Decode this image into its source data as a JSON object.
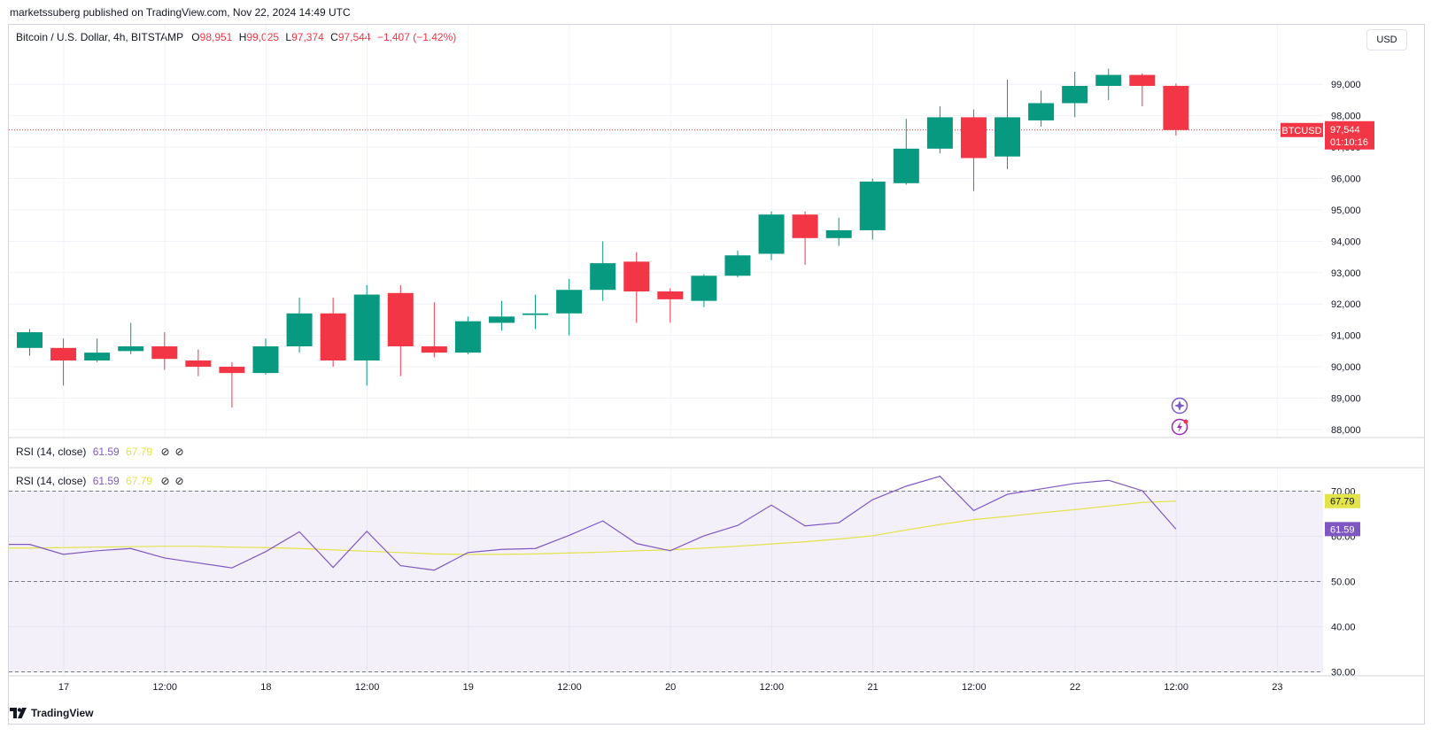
{
  "header": {
    "attribution": "marketssuberg published on TradingView.com, Nov 22, 2024 14:49 UTC"
  },
  "legend": {
    "symbol": "Bitcoin / U.S. Dollar, 4h, BITSTAMP",
    "o_label": "O",
    "o_value": "98,951",
    "h_label": "H",
    "h_value": "99,025",
    "l_label": "L",
    "l_value": "97,374",
    "c_label": "C",
    "c_value": "97,544",
    "change": "−1,407 (−1.42%)"
  },
  "currency_button": "USD",
  "price_tag": {
    "ticker": "BTCUSD",
    "price": "97,544",
    "countdown": "01:10:16"
  },
  "rsi_legend": {
    "label": "RSI (14, close)",
    "rsi_value": "61.59",
    "ma_value": "67.79"
  },
  "rsi_tags": {
    "ma": "67.79",
    "rsi": "61.59"
  },
  "branding": "TradingView",
  "colors": {
    "up": "#089981",
    "down": "#f23645",
    "rsi_line": "#7e57c2",
    "rsi_ma": "#e3e34a",
    "rsi_band": "#7e57c2"
  },
  "chart_data": [
    {
      "type": "candlestick",
      "title": "Bitcoin / U.S. Dollar, 4h, BITSTAMP",
      "y_ticks": [
        88000,
        89000,
        90000,
        91000,
        92000,
        93000,
        94000,
        95000,
        96000,
        97000,
        98000,
        99000
      ],
      "y_tick_labels": [
        "88,000",
        "89,000",
        "90,000",
        "91,000",
        "92,000",
        "93,000",
        "94,000",
        "95,000",
        "96,000",
        "97,000",
        "98,000",
        "99,000"
      ],
      "ylim": [
        87800,
        100050
      ],
      "x_tick_labels": [
        "17",
        "12:00",
        "18",
        "12:00",
        "19",
        "12:00",
        "20",
        "12:00",
        "21",
        "12:00",
        "22",
        "12:00",
        "23"
      ],
      "grid": true,
      "last_price": 97544,
      "candles": [
        {
          "o": 90600,
          "h": 91200,
          "l": 90350,
          "c": 91100
        },
        {
          "o": 90600,
          "h": 90900,
          "l": 89400,
          "c": 90200
        },
        {
          "o": 90200,
          "h": 90900,
          "l": 90150,
          "c": 90450
        },
        {
          "o": 90500,
          "h": 91400,
          "l": 90400,
          "c": 90650
        },
        {
          "o": 90650,
          "h": 91100,
          "l": 89900,
          "c": 90250
        },
        {
          "o": 90200,
          "h": 90550,
          "l": 89700,
          "c": 90000
        },
        {
          "o": 90000,
          "h": 90150,
          "l": 88700,
          "c": 89800
        },
        {
          "o": 89800,
          "h": 90900,
          "l": 89750,
          "c": 90650
        },
        {
          "o": 90650,
          "h": 92200,
          "l": 90450,
          "c": 91700
        },
        {
          "o": 91700,
          "h": 92200,
          "l": 90000,
          "c": 90200
        },
        {
          "o": 90200,
          "h": 92600,
          "l": 89400,
          "c": 92300
        },
        {
          "o": 92350,
          "h": 92600,
          "l": 89700,
          "c": 90650
        },
        {
          "o": 90650,
          "h": 92050,
          "l": 90300,
          "c": 90450
        },
        {
          "o": 90450,
          "h": 91600,
          "l": 90400,
          "c": 91450
        },
        {
          "o": 91400,
          "h": 92100,
          "l": 91150,
          "c": 91600
        },
        {
          "o": 91650,
          "h": 92300,
          "l": 91200,
          "c": 91700
        },
        {
          "o": 91700,
          "h": 92800,
          "l": 91000,
          "c": 92450
        },
        {
          "o": 92450,
          "h": 94000,
          "l": 92100,
          "c": 93300
        },
        {
          "o": 93350,
          "h": 93650,
          "l": 91400,
          "c": 92400
        },
        {
          "o": 92400,
          "h": 92500,
          "l": 91400,
          "c": 92150
        },
        {
          "o": 92100,
          "h": 92950,
          "l": 91900,
          "c": 92900
        },
        {
          "o": 92900,
          "h": 93700,
          "l": 92850,
          "c": 93550
        },
        {
          "o": 93600,
          "h": 94950,
          "l": 93400,
          "c": 94850
        },
        {
          "o": 94850,
          "h": 94950,
          "l": 93250,
          "c": 94100
        },
        {
          "o": 94100,
          "h": 94750,
          "l": 93850,
          "c": 94350
        },
        {
          "o": 94350,
          "h": 96000,
          "l": 94050,
          "c": 95900
        },
        {
          "o": 95850,
          "h": 97900,
          "l": 95800,
          "c": 96950
        },
        {
          "o": 96950,
          "h": 98300,
          "l": 96800,
          "c": 97950
        },
        {
          "o": 97950,
          "h": 98200,
          "l": 95600,
          "c": 96650
        },
        {
          "o": 96700,
          "h": 99150,
          "l": 96300,
          "c": 97950
        },
        {
          "o": 97850,
          "h": 98800,
          "l": 97650,
          "c": 98400
        },
        {
          "o": 98400,
          "h": 99400,
          "l": 97950,
          "c": 98950
        },
        {
          "o": 98950,
          "h": 99500,
          "l": 98500,
          "c": 99300
        },
        {
          "o": 99300,
          "h": 99350,
          "l": 98300,
          "c": 98950
        },
        {
          "o": 98951,
          "h": 99025,
          "l": 97374,
          "c": 97544
        }
      ]
    },
    {
      "type": "line",
      "title": "RSI (14, close)",
      "y_ticks": [
        30,
        40,
        50,
        60,
        70
      ],
      "y_tick_labels": [
        "30.00",
        "40.00",
        "50.00",
        "60.00",
        "70.00"
      ],
      "ylim": [
        29.5,
        74.8
      ],
      "band": [
        30,
        70
      ],
      "levels": [
        30,
        50,
        70
      ],
      "rsi": [
        58.2,
        56.0,
        56.8,
        57.3,
        55.2,
        54.1,
        53.0,
        56.6,
        61.0,
        53.1,
        61.1,
        53.5,
        52.5,
        56.4,
        57.1,
        57.3,
        60.2,
        63.4,
        58.4,
        56.8,
        60.1,
        62.4,
        66.9,
        62.3,
        63.0,
        68.1,
        71.1,
        73.3,
        65.7,
        69.3,
        70.5,
        71.7,
        72.4,
        70.1,
        61.59
      ],
      "rsi_ma": [
        57.4,
        57.5,
        57.6,
        57.7,
        57.8,
        57.8,
        57.6,
        57.5,
        57.3,
        57.0,
        56.7,
        56.4,
        56.1,
        56.0,
        56.0,
        56.1,
        56.3,
        56.5,
        56.8,
        57.0,
        57.4,
        57.8,
        58.3,
        58.8,
        59.4,
        60.1,
        61.4,
        62.6,
        63.7,
        64.4,
        65.2,
        65.9,
        66.7,
        67.5,
        67.79
      ]
    }
  ]
}
